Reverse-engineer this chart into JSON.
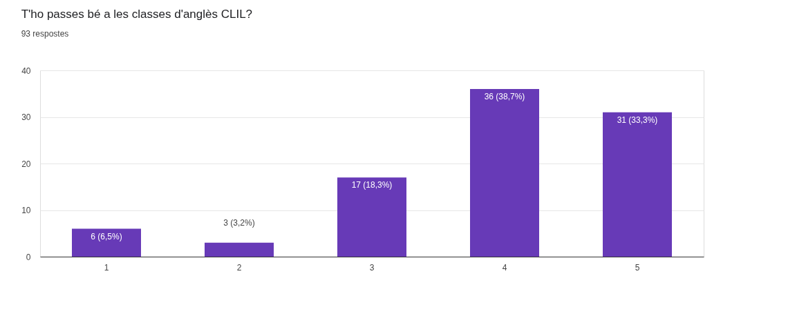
{
  "chart_data": {
    "type": "bar",
    "title": "T'ho passes bé a les classes d'anglès CLIL?",
    "subtitle": "93 respostes",
    "categories": [
      "1",
      "2",
      "3",
      "4",
      "5"
    ],
    "values": [
      6,
      3,
      17,
      36,
      31
    ],
    "value_labels": [
      "6 (6,5%)",
      "3 (3,2%)",
      "17 (18,3%)",
      "36 (38,7%)",
      "31 (33,3%)"
    ],
    "color": "#673ab7",
    "ylim": [
      0,
      40
    ],
    "yticks": [
      0,
      10,
      20,
      30,
      40
    ],
    "grid": "y"
  }
}
